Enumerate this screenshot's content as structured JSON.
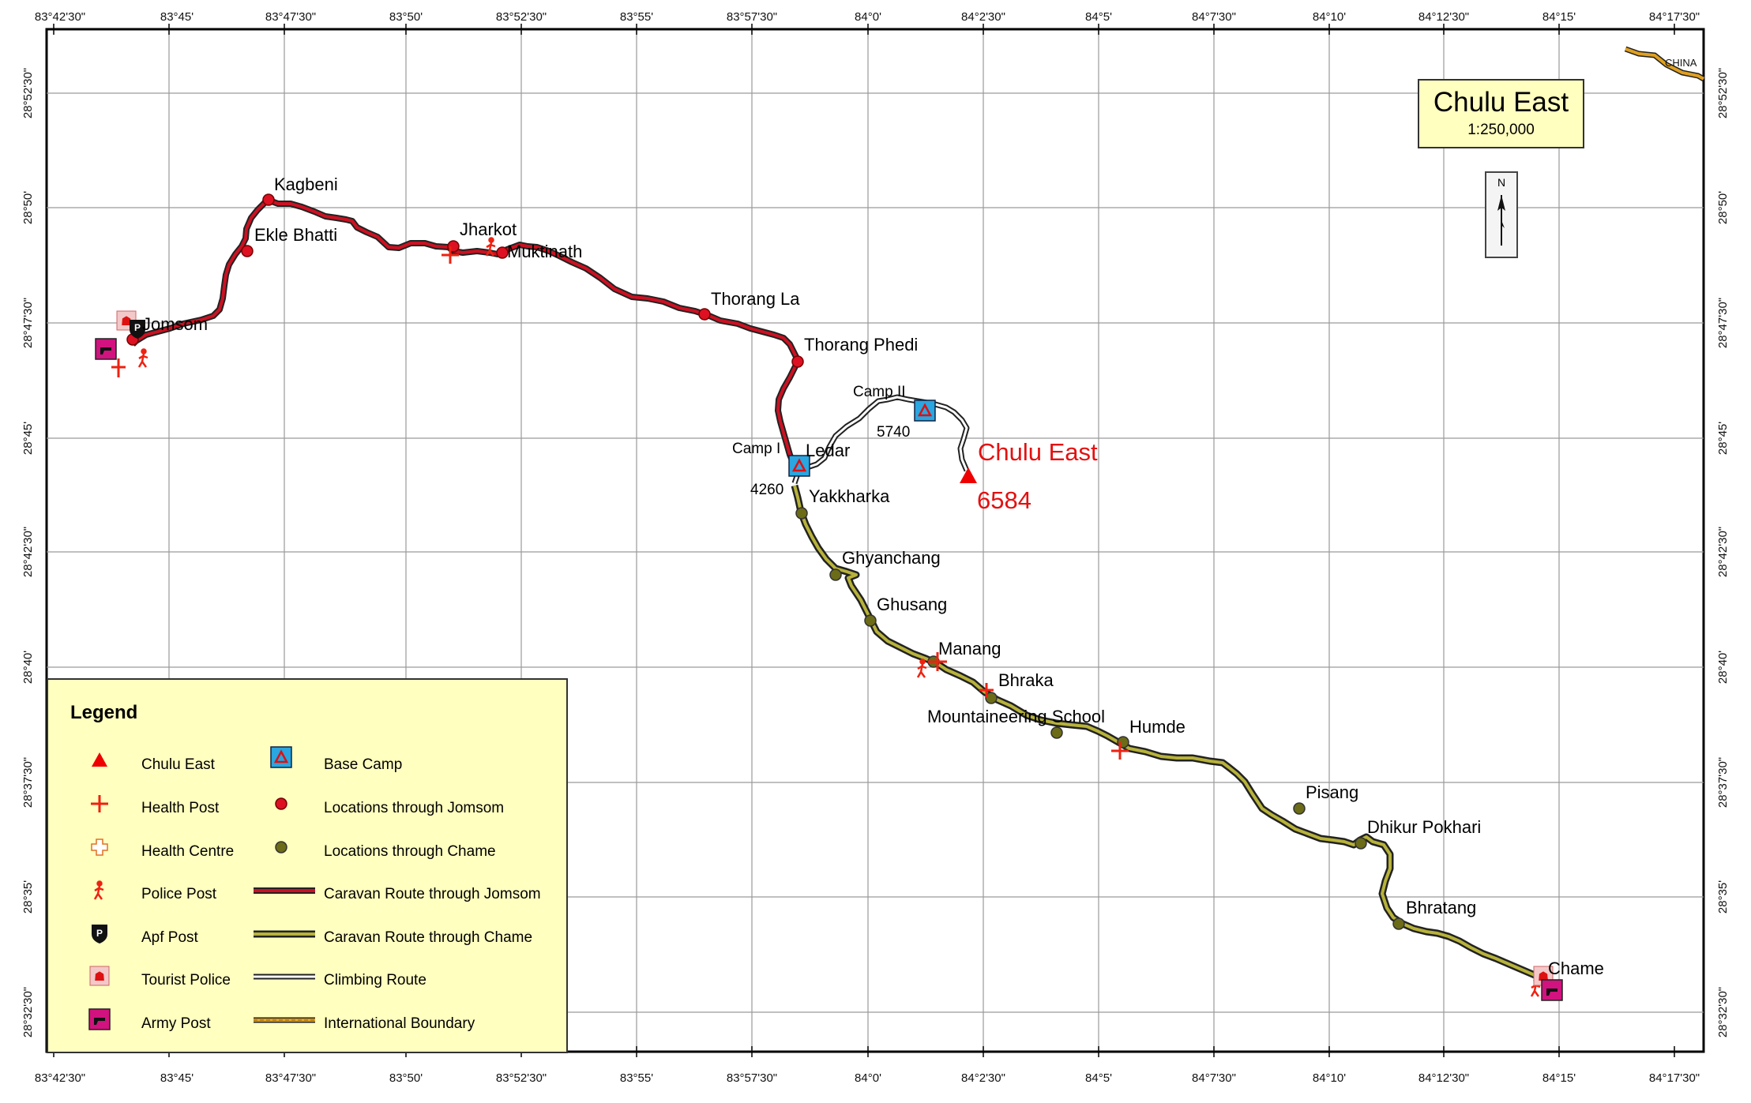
{
  "map": {
    "title": "Chulu East",
    "scale": "1:250,000",
    "north": "N",
    "colors": {
      "frame": "#000000",
      "grid": "#999999",
      "jomsom_route": "#cc1122",
      "chame_route": "#b7b23a",
      "climbing_route": "#ffffff",
      "boundary": "#e0a020",
      "peak": "#ee0000",
      "legend_bg": "#ffffc0"
    },
    "lon_ticks": [
      "83°42'30\"",
      "83°45'",
      "83°47'30\"",
      "83°50'",
      "83°52'30\"",
      "83°55'",
      "83°57'30\"",
      "84°0'",
      "84°2'30\"",
      "84°5'",
      "84°7'30\"",
      "84°10'",
      "84°12'30\"",
      "84°15'",
      "84°17'30\""
    ],
    "lat_ticks": [
      "28°52'30\"",
      "28°50'",
      "28°47'30\"",
      "28°45'",
      "28°42'30\"",
      "28°40'",
      "28°37'30\"",
      "28°35'",
      "28°32'30\""
    ],
    "border_label": "CHINA",
    "peak": {
      "name": "Chulu East",
      "elevation": "6584"
    },
    "elevations": {
      "camp1": "4260",
      "camp2": "5740"
    },
    "places": {
      "kagbeni": "Kagbeni",
      "ekle_bhatti": "Ekle Bhatti",
      "jharkot": "Jharkot",
      "muktinath": "Muktinath",
      "jomsom": "Jomsom",
      "thorang_la": "Thorang La",
      "thorang_phedi": "Thorang Phedi",
      "camp2": "Camp II",
      "camp1": "Camp I",
      "ledar": "Ledar",
      "yakkharka": "Yakkharka",
      "ghyanchang": "Ghyanchang",
      "ghusang": "Ghusang",
      "manang": "Manang",
      "bhraka": "Bhraka",
      "mountaineering_school": "Mountaineering School",
      "humde": "Humde",
      "pisang": "Pisang",
      "dhikur_pokhari": "Dhikur Pokhari",
      "bhratang": "Bhratang",
      "chame": "Chame"
    }
  },
  "legend": {
    "title": "Legend",
    "items": [
      {
        "label": "Chulu East",
        "icon": "peak-triangle-icon"
      },
      {
        "label": "Health Post",
        "icon": "health-post-icon"
      },
      {
        "label": "Health Centre",
        "icon": "health-centre-icon"
      },
      {
        "label": "Police Post",
        "icon": "police-post-icon"
      },
      {
        "label": "Apf Post",
        "icon": "apf-post-icon"
      },
      {
        "label": "Tourist Police",
        "icon": "tourist-police-icon"
      },
      {
        "label": "Army Post",
        "icon": "army-post-icon"
      },
      {
        "label": "Base Camp",
        "icon": "base-camp-icon"
      },
      {
        "label": "Locations through Jomsom",
        "icon": "jomsom-location-icon"
      },
      {
        "label": "Locations through Chame",
        "icon": "chame-location-icon"
      },
      {
        "label": "Caravan Route through Jomsom",
        "icon": "jomsom-route-line-icon"
      },
      {
        "label": "Caravan Route through Chame",
        "icon": "chame-route-line-icon"
      },
      {
        "label": "Climbing Route",
        "icon": "climbing-route-line-icon"
      },
      {
        "label": "International Boundary",
        "icon": "boundary-line-icon"
      }
    ]
  }
}
